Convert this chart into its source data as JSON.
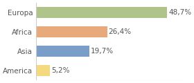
{
  "categories": [
    "America",
    "Asia",
    "Africa",
    "Europa"
  ],
  "values": [
    5.2,
    19.7,
    26.4,
    48.7
  ],
  "labels": [
    "5,2%",
    "19,7%",
    "26,4%",
    "48,7%"
  ],
  "bar_colors": [
    "#f5d97e",
    "#7b9ec9",
    "#e8aa7a",
    "#aec48a"
  ],
  "background_color": "#ffffff",
  "plot_bg_color": "#f0f0f0",
  "xlim": [
    0,
    55
  ],
  "bar_height": 0.55,
  "label_fontsize": 7.5,
  "tick_fontsize": 7.5,
  "label_color": "#555555",
  "divider_color": "#cccccc"
}
